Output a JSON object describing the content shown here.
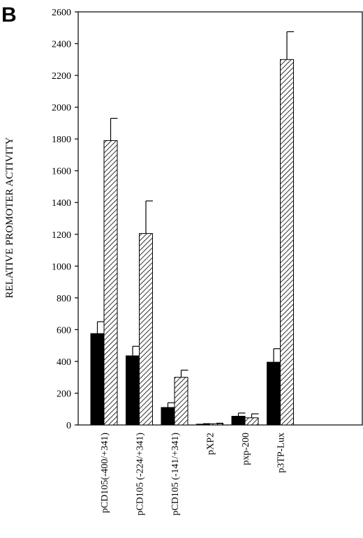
{
  "panel_label": "B",
  "chart_data": {
    "type": "bar",
    "title": "",
    "xlabel": "",
    "ylabel": "RELATIVE PROMOTER ACTIVITY",
    "ylim": [
      0,
      2600
    ],
    "yticks": [
      0,
      200,
      400,
      600,
      800,
      1000,
      1200,
      1400,
      1600,
      1800,
      2000,
      2200,
      2400,
      2600
    ],
    "categories": [
      "pCD105(-400/+341)",
      "pCD105 (-224/+341)",
      "pCD105 (-141/+341)",
      "pXP2",
      "pxp-200",
      "p3TP-Lux"
    ],
    "series": [
      {
        "fill": "solid",
        "color": "#000000",
        "values": [
          575,
          435,
          110,
          5,
          55,
          395
        ],
        "errors": [
          75,
          60,
          30,
          3,
          20,
          85
        ]
      },
      {
        "fill": "hatched",
        "color": "#000000",
        "values": [
          1790,
          1205,
          300,
          8,
          45,
          2300
        ],
        "errors": [
          140,
          205,
          45,
          3,
          25,
          175
        ]
      }
    ],
    "grid": false,
    "legend": "none"
  }
}
